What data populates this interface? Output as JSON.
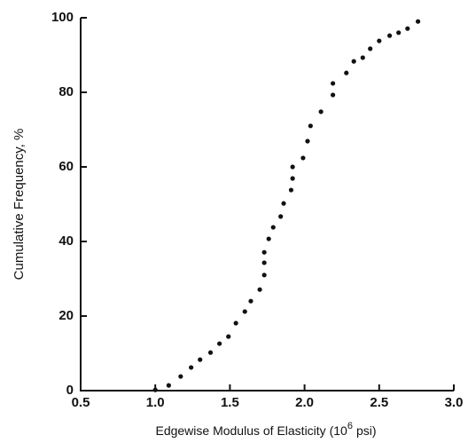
{
  "chart_data": {
    "type": "scatter",
    "xlabel": [
      "Edgewise Modulus of Elasticity (10",
      "6",
      "psi)"
    ],
    "ylabel": "Cumulative Frequency, %",
    "color": "#111111",
    "x": [
      1.0,
      1.09,
      1.17,
      1.24,
      1.3,
      1.37,
      1.43,
      1.49,
      1.54,
      1.6,
      1.64,
      1.7,
      1.73,
      1.73,
      1.73,
      1.76,
      1.79,
      1.84,
      1.86,
      1.91,
      1.92,
      1.92,
      1.99,
      2.02,
      2.04,
      2.11,
      2.19,
      2.19,
      2.28,
      2.33,
      2.39,
      2.44,
      2.5,
      2.57,
      2.63,
      2.69,
      2.76
    ],
    "values": [
      0.2,
      1.4,
      3.8,
      6.2,
      8.3,
      10.2,
      12.6,
      14.5,
      18.1,
      21.2,
      24.0,
      27.1,
      31.0,
      34.3,
      37.1,
      40.7,
      43.8,
      46.7,
      50.2,
      53.8,
      56.9,
      60.0,
      62.4,
      66.9,
      71.0,
      74.8,
      79.3,
      82.4,
      85.2,
      88.3,
      89.3,
      91.7,
      93.8,
      95.2,
      96.0,
      97.1,
      99.0
    ],
    "xlim": [
      0.5,
      3.0
    ],
    "xticks": [
      0.5,
      {
        "value": 1,
        "label": "1.0"
      },
      1.5,
      {
        "value": 2,
        "label": "2.0"
      },
      2.5,
      {
        "value": 3,
        "label": "3.0"
      }
    ],
    "ylim": [
      0,
      100
    ],
    "yticks": [
      0,
      20,
      40,
      60,
      80,
      100
    ]
  }
}
